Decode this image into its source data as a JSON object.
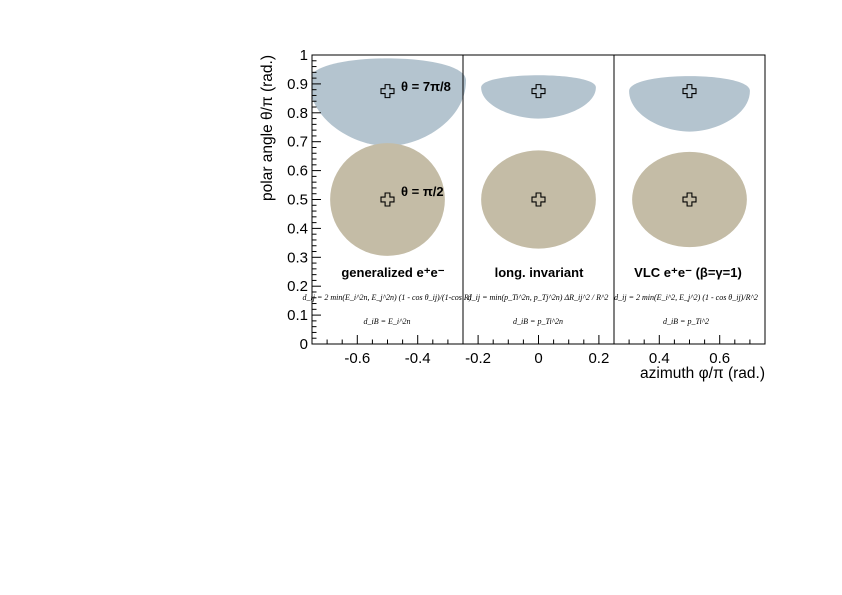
{
  "chart_data": {
    "type": "scatter",
    "xlabel": "azimuth φ/π (rad.)",
    "ylabel": "polar angle θ/π (rad.)",
    "xlim": [
      -0.75,
      0.75
    ],
    "ylim": [
      0,
      1
    ],
    "x_ticks": [
      "-0.6",
      "-0.4",
      "-0.2",
      "0",
      "0.2",
      "0.4",
      "0.6"
    ],
    "x_tick_values": [
      -0.6,
      -0.4,
      -0.2,
      0,
      0.2,
      0.4,
      0.6
    ],
    "y_ticks": [
      "0",
      "0.1",
      "0.2",
      "0.3",
      "0.4",
      "0.5",
      "0.6",
      "0.7",
      "0.8",
      "0.9",
      "1"
    ],
    "y_tick_values": [
      0,
      0.1,
      0.2,
      0.3,
      0.4,
      0.5,
      0.6,
      0.7,
      0.8,
      0.9,
      1
    ],
    "panel_separators_x": [
      -0.25,
      0.25
    ],
    "colors": {
      "forward_jet": "#b4c4cf",
      "central_jet": "#c4bca6"
    },
    "annotations": {
      "theta_forward": "θ = 7π/8",
      "theta_central": "θ = π/2"
    },
    "panels": [
      {
        "title": "generalized e⁺e⁻",
        "formula_dij": "d_ij = 2 min(E_i^2n, E_j^2n) (1 - cos θ_ij)/(1-cos R)",
        "formula_diB": "d_iB = E_i^2n",
        "jets": [
          {
            "phi": -0.5,
            "theta": 0.875,
            "color": "forward_jet",
            "phi_half_width": 0.26,
            "theta_top": 1.0,
            "theta_bottom": 0.685
          },
          {
            "phi": -0.5,
            "theta": 0.5,
            "color": "central_jet",
            "phi_half_width": 0.19,
            "theta_half_height": 0.195
          }
        ]
      },
      {
        "title": "long. invariant",
        "formula_dij": "d_ij = min(p_Ti^2n, p_Tj^2n) ΔR_ij^2 / R^2",
        "formula_diB": "d_iB = p_Ti^2n",
        "jets": [
          {
            "phi": 0,
            "theta": 0.875,
            "color": "forward_jet",
            "phi_half_width": 0.19,
            "theta_top": 0.93,
            "theta_bottom": 0.78
          },
          {
            "phi": 0,
            "theta": 0.5,
            "color": "central_jet",
            "phi_half_width": 0.19,
            "theta_half_height": 0.17
          }
        ]
      },
      {
        "title": "VLC e⁺e⁻ (β=γ=1)",
        "formula_dij": "d_ij = 2 min(E_i^2, E_j^2) (1 - cos θ_ij)/R^2",
        "formula_diB": "d_iB = p_Ti^2",
        "jets": [
          {
            "phi": 0.5,
            "theta": 0.875,
            "color": "forward_jet",
            "phi_half_width": 0.2,
            "theta_top": 0.93,
            "theta_bottom": 0.735
          },
          {
            "phi": 0.5,
            "theta": 0.5,
            "color": "central_jet",
            "phi_half_width": 0.19,
            "theta_half_height": 0.165
          }
        ]
      }
    ],
    "grid": false,
    "legend": "none"
  }
}
